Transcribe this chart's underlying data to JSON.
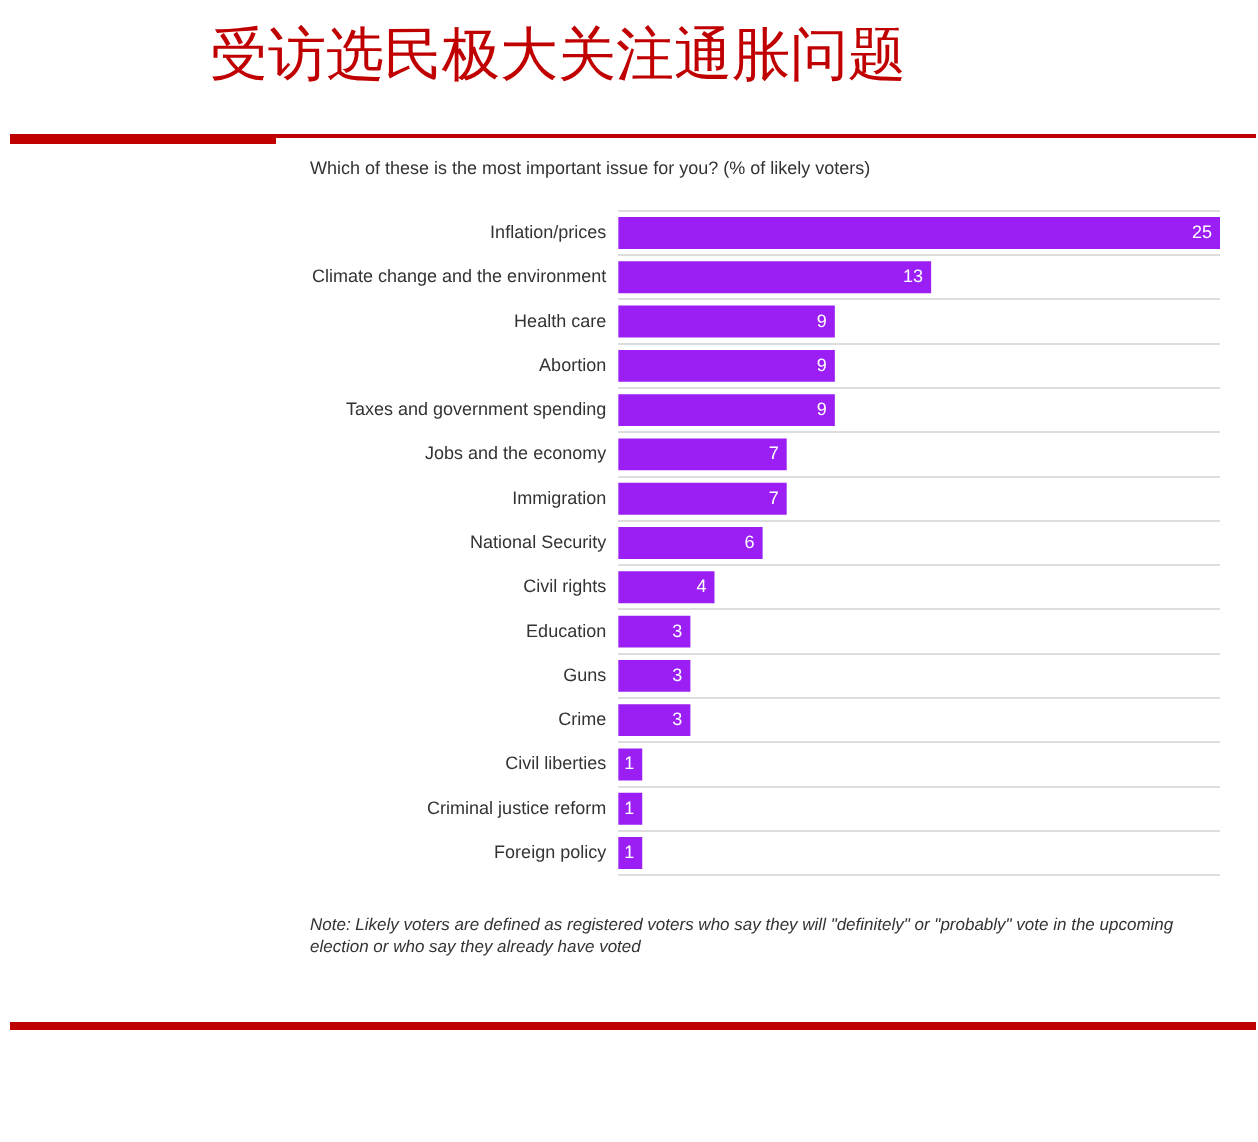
{
  "chart_data": {
    "type": "bar",
    "orientation": "horizontal",
    "title": "受访选民极大关注通胀问题",
    "subtitle": "Which of these is the most important issue for you? (% of likely voters)",
    "categories": [
      "Inflation/prices",
      "Climate change and the environment",
      "Health care",
      "Abortion",
      "Taxes and government spending",
      "Jobs and the economy",
      "Immigration",
      "National Security",
      "Civil rights",
      "Education",
      "Guns",
      "Crime",
      "Civil liberties",
      "Criminal justice reform",
      "Foreign policy"
    ],
    "values": [
      25,
      13,
      9,
      9,
      9,
      7,
      7,
      6,
      4,
      3,
      3,
      3,
      1,
      1,
      1
    ],
    "color": "#9b1ff5",
    "xlim": [
      0,
      25
    ],
    "tick_labels": "y",
    "grid": "y",
    "data_labels": true,
    "legend": false,
    "annotations": [
      "Note: Likely voters are defined as registered voters who say they will \"definitely\" or \"probably\" vote in the upcoming election or who say they already have voted"
    ]
  }
}
